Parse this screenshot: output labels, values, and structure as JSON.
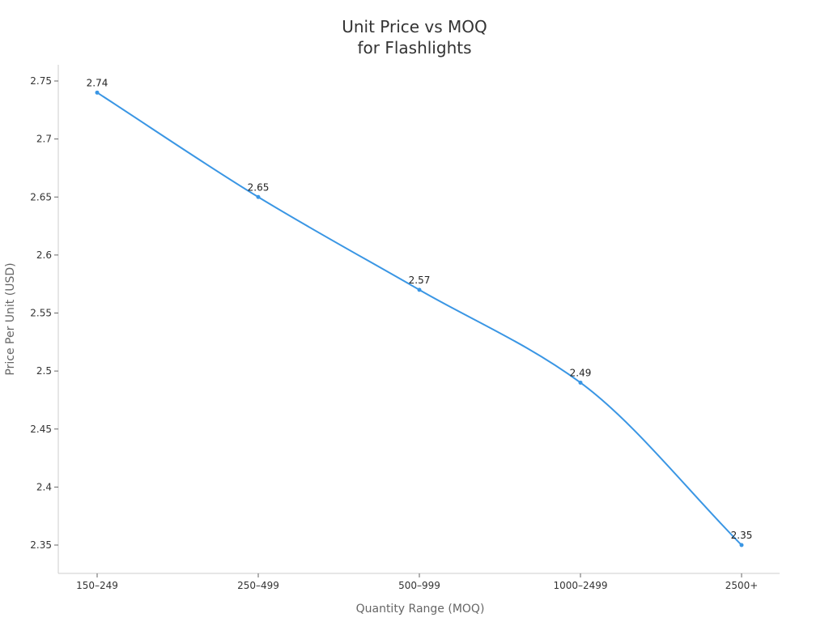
{
  "chart_data": {
    "type": "line",
    "title": [
      "Unit Price vs MOQ",
      "for Flashlights"
    ],
    "xlabel": "Quantity Range (MOQ)",
    "ylabel": "Price Per Unit (USD)",
    "categories": [
      "150–249",
      "250–499",
      "500–999",
      "1000–2499",
      "2500+"
    ],
    "values": [
      2.74,
      2.65,
      2.57,
      2.49,
      2.35
    ],
    "data_labels": [
      "2.74",
      "2.65",
      "2.57",
      "2.49",
      "2.35"
    ],
    "yticks": [
      "2.35",
      "2.4",
      "2.45",
      "2.5",
      "2.55",
      "2.6",
      "2.65",
      "2.7",
      "2.75"
    ],
    "ylim": [
      2.3355,
      2.764
    ],
    "grid": false,
    "smooth": true,
    "line_color": "#3a96e4",
    "axis_color": "#cccccc"
  }
}
